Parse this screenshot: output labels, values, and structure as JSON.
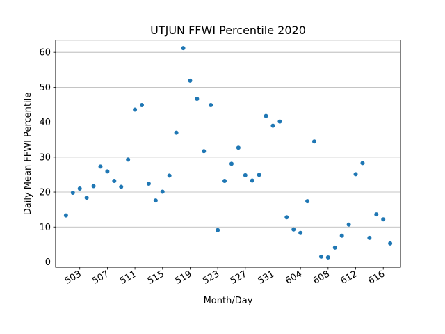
{
  "chart_data": {
    "type": "scatter",
    "title": "UTJUN FFWI Percentile 2020",
    "xlabel": "Month/Day",
    "ylabel": "Daily Mean FFWI Percentile",
    "grid": "horizontal",
    "point_color": "#1f77b4",
    "ylim": [
      -1.5,
      63.5
    ],
    "yticks": [
      0,
      10,
      20,
      30,
      40,
      50,
      60
    ],
    "x_categories": [
      "501",
      "502",
      "503",
      "504",
      "505",
      "506",
      "507",
      "508",
      "509",
      "510",
      "511",
      "512",
      "513",
      "514",
      "515",
      "516",
      "517",
      "518",
      "519",
      "520",
      "521",
      "522",
      "523",
      "524",
      "525",
      "526",
      "527",
      "528",
      "529",
      "530",
      "531",
      "601",
      "602",
      "603",
      "604",
      "605",
      "606",
      "607",
      "608",
      "609",
      "610",
      "611",
      "612",
      "613",
      "614",
      "615",
      "616",
      "617"
    ],
    "x_tick_labels": [
      "503",
      "507",
      "511",
      "515",
      "519",
      "523",
      "527",
      "531",
      "604",
      "608",
      "612",
      "616"
    ],
    "values": [
      13.3,
      19.8,
      21.0,
      18.4,
      21.7,
      27.3,
      25.9,
      23.2,
      21.5,
      29.3,
      43.6,
      44.9,
      22.4,
      17.6,
      20.1,
      24.7,
      37.0,
      61.2,
      51.9,
      46.7,
      31.7,
      44.9,
      9.1,
      23.2,
      28.1,
      32.7,
      24.8,
      23.3,
      24.9,
      41.8,
      39.0,
      40.2,
      12.8,
      9.3,
      8.3,
      17.4,
      34.5,
      1.5,
      1.3,
      4.1,
      7.5,
      10.7,
      25.1,
      28.3,
      6.9,
      13.6,
      12.2,
      5.3
    ]
  }
}
